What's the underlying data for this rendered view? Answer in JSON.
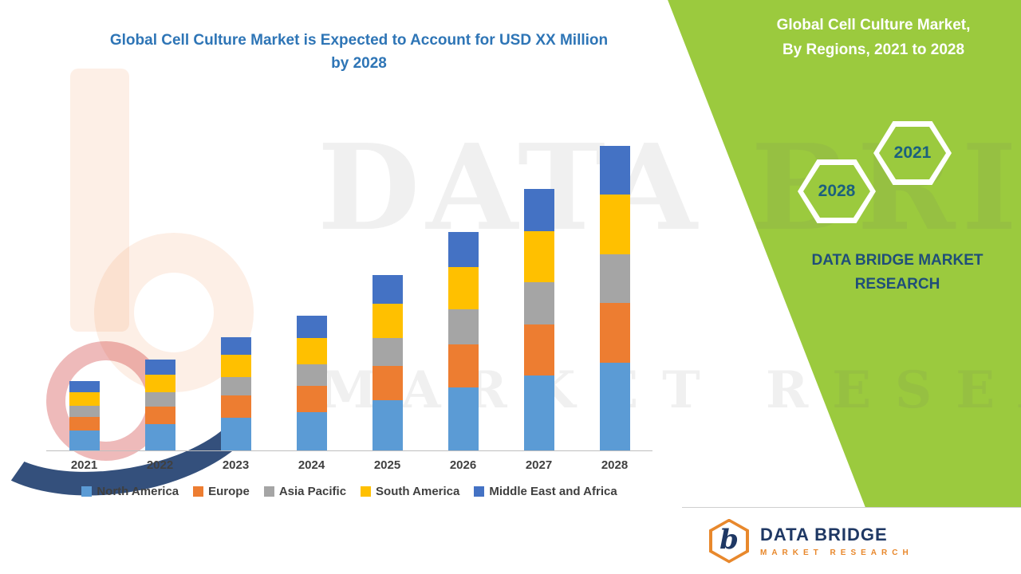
{
  "colors": {
    "panel_green": "#9BCA3E",
    "title_blue": "#2E75B6",
    "brand_navy": "#1F4E79",
    "hex_number": "#1B607E",
    "axis_line": "#BFBFBF",
    "legend_text": "#3F3F3F",
    "logo_navy": "#1F3864",
    "logo_orange": "#E8882C"
  },
  "title": {
    "line1": "Global Cell Culture Market is Expected to Account for USD XX Million",
    "line2": "by 2028"
  },
  "side_panel": {
    "heading_line1": "Global Cell Culture Market,",
    "heading_line2": "By Regions, 2021 to 2028",
    "hex_front": "2021",
    "hex_back": "2028",
    "brand_line1": "DATA BRIDGE MARKET",
    "brand_line2": "RESEARCH"
  },
  "watermark": {
    "line1": "DATA BRIDGE",
    "line2": "MARKET RESEARCH"
  },
  "footer_logo": {
    "mark_letter": "b",
    "brand": "DATA BRIDGE",
    "sub": "MARKET RESEARCH"
  },
  "chart_data": {
    "type": "bar",
    "stacked": true,
    "title": "Global Cell Culture Market is Expected to Account for USD XX Million by 2028",
    "xlabel": "",
    "ylabel": "",
    "categories": [
      "2021",
      "2022",
      "2023",
      "2024",
      "2025",
      "2026",
      "2027",
      "2028"
    ],
    "series": [
      {
        "name": "North America",
        "color": "#5B9BD5",
        "values": [
          25,
          33,
          41,
          48,
          63,
          79,
          94,
          110
        ]
      },
      {
        "name": "Europe",
        "color": "#ED7D31",
        "values": [
          17,
          22,
          28,
          33,
          43,
          54,
          64,
          75
        ]
      },
      {
        "name": "Asia Pacific",
        "color": "#A5A5A5",
        "values": [
          14,
          18,
          23,
          27,
          35,
          44,
          53,
          61
        ]
      },
      {
        "name": "South America",
        "color": "#FFC000",
        "values": [
          17,
          22,
          28,
          33,
          43,
          53,
          64,
          75
        ]
      },
      {
        "name": "Middle East and Africa",
        "color": "#4472C4",
        "values": [
          14,
          19,
          22,
          28,
          36,
          44,
          53,
          61
        ]
      }
    ],
    "totals": [
      87,
      114,
      142,
      169,
      220,
      274,
      328,
      382
    ],
    "ylim": [
      0,
      400
    ],
    "y_axis_visible": false,
    "grid": false,
    "legend_position": "bottom",
    "units": "relative height; actual values masked as 'USD XX Million' in source"
  }
}
